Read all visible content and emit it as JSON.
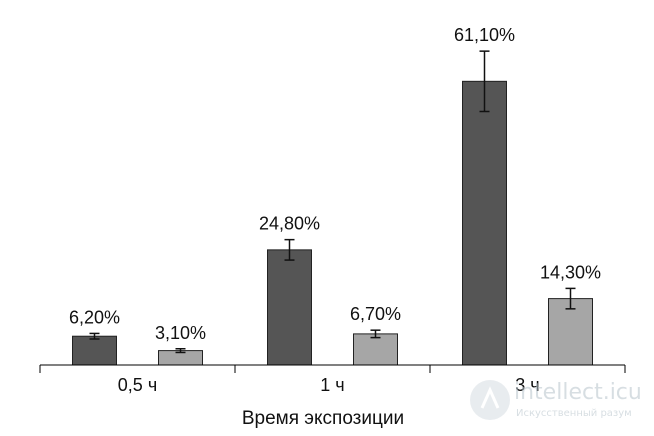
{
  "chart_data": {
    "type": "bar",
    "categories": [
      "0,5 ч",
      "1 ч",
      "3 ч"
    ],
    "series": [
      {
        "color": "#555555",
        "values": [
          6.2,
          24.8,
          61.1
        ],
        "labels": [
          "6,20%",
          "24,80%",
          "61,10%"
        ],
        "errors": [
          0.6,
          2.2,
          6.5
        ]
      },
      {
        "color": "#a6a6a6",
        "values": [
          3.1,
          6.7,
          14.3
        ],
        "labels": [
          "3,10%",
          "6,70%",
          "14,30%"
        ],
        "errors": [
          0.4,
          0.8,
          2.2
        ]
      }
    ],
    "title": "",
    "xlabel": "Время экспозиции",
    "ylabel": "",
    "ylim": [
      0,
      70
    ],
    "grid": false
  },
  "watermark": {
    "brand": "intellect.icu",
    "tagline": "Искусственный разум"
  }
}
